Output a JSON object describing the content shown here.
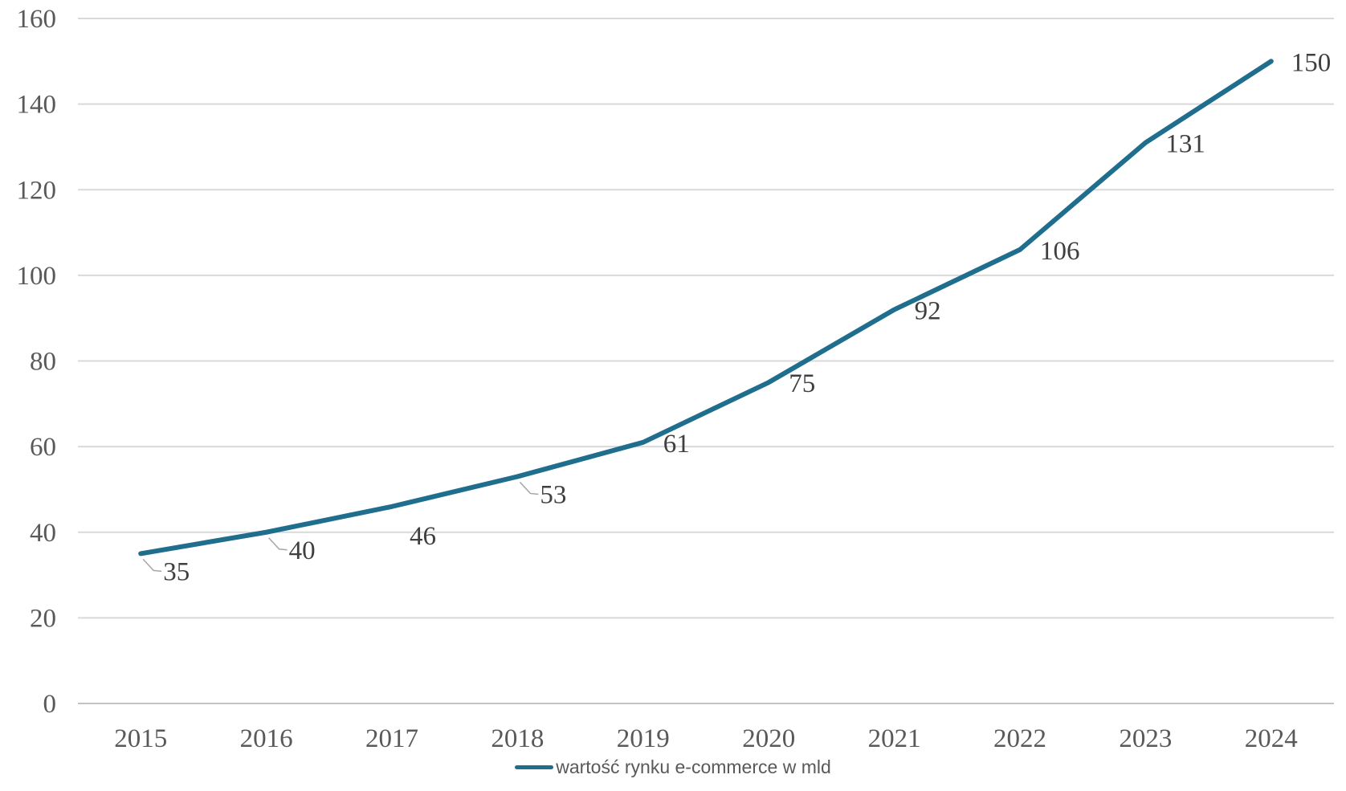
{
  "chart_data": {
    "type": "line",
    "title": "",
    "categories": [
      "2015",
      "2016",
      "2017",
      "2018",
      "2019",
      "2020",
      "2021",
      "2022",
      "2023",
      "2024"
    ],
    "series": [
      {
        "name": "wartość rynku e-commerce w mld",
        "values": [
          35,
          40,
          46,
          53,
          61,
          75,
          92,
          106,
          131,
          150
        ]
      }
    ],
    "xlabel": "",
    "ylabel": "",
    "ylim": [
      0,
      160
    ],
    "yticks": [
      0,
      20,
      40,
      60,
      80,
      100,
      120,
      140,
      160
    ],
    "grid": "horizontal",
    "legend_position": "bottom",
    "data_labels_shown": true,
    "colors": {
      "line": "#1F6E8E",
      "axis_text": "#595959",
      "data_label_text": "#3F3F3F",
      "gridline": "#D9D9D9",
      "baseline": "#C3C3C3",
      "leader_line": "#A6A6A6",
      "background": "#FFFFFF"
    }
  }
}
